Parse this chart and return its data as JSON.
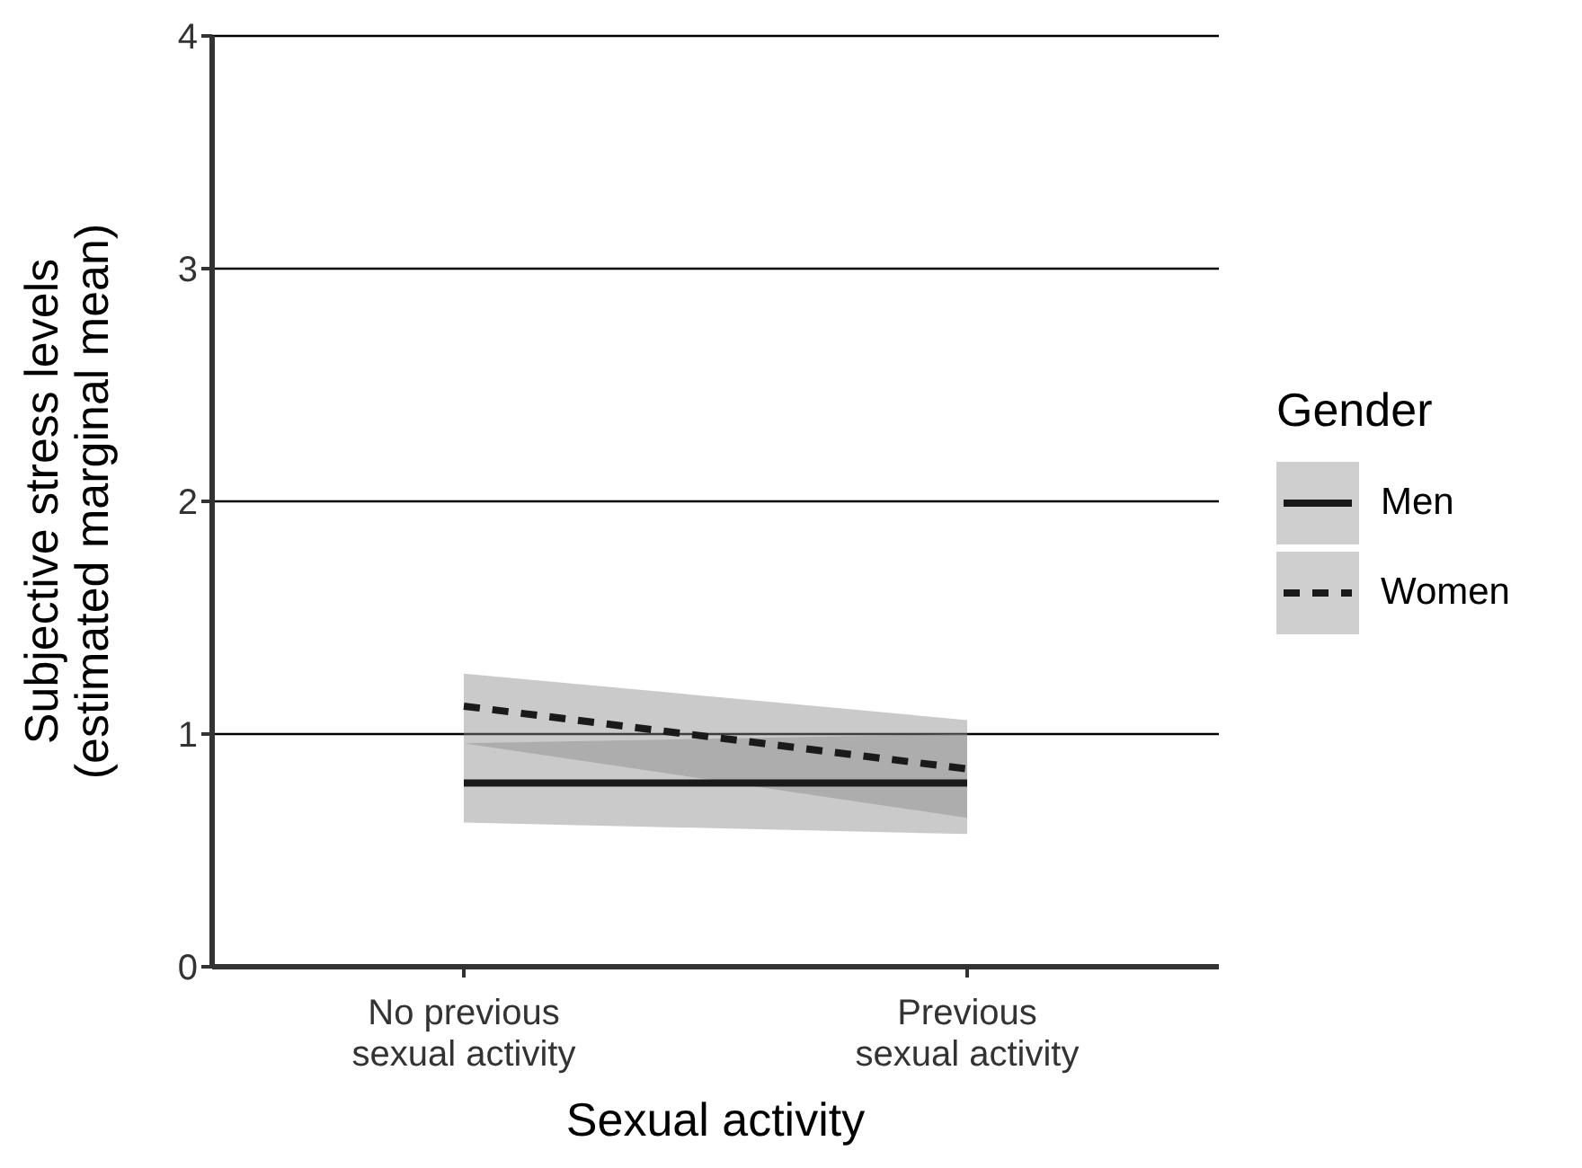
{
  "chart_data": {
    "type": "line",
    "xlabel": "Sexual activity",
    "ylabel": "Subjective stress levels (estimated marginal mean)",
    "legend_title": "Gender",
    "categories": [
      "No previous sexual activity",
      "Previous sexual activity"
    ],
    "series": [
      {
        "name": "Men",
        "color": "#1a1a1a",
        "line_style": "solid",
        "values": [
          0.79,
          0.79
        ],
        "lower": [
          0.62,
          0.57
        ],
        "upper": [
          0.96,
          1.0
        ]
      },
      {
        "name": "Women",
        "color": "#1a1a1a",
        "line_style": "dashed",
        "values": [
          1.12,
          0.85
        ],
        "lower": [
          0.96,
          0.64
        ],
        "upper": [
          1.26,
          1.06
        ]
      }
    ],
    "ylim": [
      0,
      4
    ],
    "yticks": [
      0,
      1,
      2,
      3,
      4
    ],
    "grid": "y",
    "legend": "right",
    "marker": "none"
  }
}
